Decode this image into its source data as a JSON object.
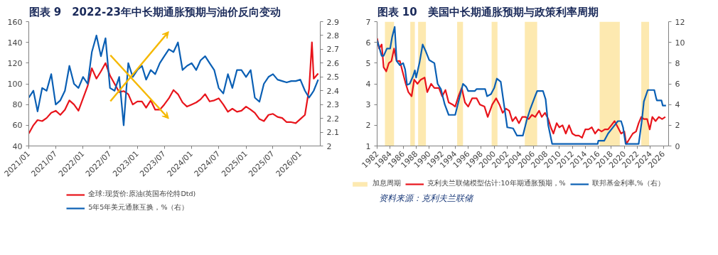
{
  "chart_data": [
    {
      "type": "line",
      "title": "图表 9　2022-23年中长期通胀预期与油价反向变动",
      "xlim": [
        "2021-01-01",
        "2026-05-15"
      ],
      "xticks": [
        {
          "value": "2021-01",
          "label": "2021/01"
        },
        {
          "value": "2021-07",
          "label": "2021/07"
        },
        {
          "value": "2022-01",
          "label": "2022/01"
        },
        {
          "value": "2022-07",
          "label": "2022/07"
        },
        {
          "value": "2023-01",
          "label": "2023/01"
        },
        {
          "value": "2023-07",
          "label": "2023/07"
        },
        {
          "value": "2024-01",
          "label": "2024/01"
        },
        {
          "value": "2024-07",
          "label": "2024/07"
        },
        {
          "value": "2025-01",
          "label": "2025/01"
        },
        {
          "value": "2025-07",
          "label": "2025/07"
        },
        {
          "value": "2026-01",
          "label": "2026/01"
        }
      ],
      "ylim": [
        40,
        160
      ],
      "yticks": [
        40,
        60,
        80,
        100,
        120,
        140,
        160
      ],
      "y2lim": [
        2,
        2.9
      ],
      "y2ticks": [
        2,
        2.1,
        2.2,
        2.3,
        2.4,
        2.5,
        2.6,
        2.7,
        2.8,
        2.9
      ],
      "grid": false,
      "legend": "bottom",
      "x": [
        "2021-01",
        "2021-02",
        "2021-03",
        "2021-04",
        "2021-05",
        "2021-06",
        "2021-07",
        "2021-08",
        "2021-09",
        "2021-10",
        "2021-11",
        "2021-12",
        "2022-01",
        "2022-02",
        "2022-03",
        "2022-04",
        "2022-05",
        "2022-06",
        "2022-07",
        "2022-08",
        "2022-09",
        "2022-10",
        "2022-11",
        "2022-12",
        "2023-01",
        "2023-02",
        "2023-03",
        "2023-04",
        "2023-05",
        "2023-06",
        "2023-07",
        "2023-08",
        "2023-09",
        "2023-10",
        "2023-11",
        "2023-12",
        "2024-01",
        "2024-02",
        "2024-03",
        "2024-04",
        "2024-05",
        "2024-06",
        "2024-07",
        "2024-08",
        "2024-09",
        "2024-10",
        "2024-11",
        "2024-12",
        "2025-01",
        "2025-02",
        "2025-03",
        "2025-04",
        "2025-05",
        "2025-06",
        "2025-07",
        "2025-08",
        "2025-09",
        "2025-10",
        "2025-11",
        "2025-12",
        "2026-01",
        "2026-02",
        "2026-03",
        "2026-03-20",
        "2026-04",
        "2026-05"
      ],
      "series": [
        {
          "name": "全球:现货价:原油(英国布伦特Dtd)",
          "color": "#e8141b",
          "values": [
            52,
            60,
            65,
            64,
            67,
            72,
            74,
            70,
            75,
            84,
            80,
            74,
            86,
            98,
            115,
            105,
            112,
            120,
            108,
            100,
            92,
            93,
            90,
            80,
            83,
            83,
            77,
            84,
            75,
            75,
            80,
            86,
            94,
            90,
            82,
            78,
            80,
            82,
            85,
            90,
            83,
            84,
            86,
            80,
            73,
            76,
            73,
            74,
            78,
            75,
            72,
            66,
            64,
            70,
            71,
            68,
            67,
            63,
            63,
            62,
            66,
            70,
            95,
            140,
            105,
            110
          ]
        },
        {
          "name": "5年5年美元通胀互换，%（右）",
          "color": "#0a5fb4",
          "axis": "y2",
          "values": [
            2.35,
            2.4,
            2.25,
            2.42,
            2.4,
            2.52,
            2.3,
            2.33,
            2.4,
            2.58,
            2.45,
            2.42,
            2.5,
            2.45,
            2.68,
            2.8,
            2.65,
            2.78,
            2.42,
            2.4,
            2.5,
            2.15,
            2.6,
            2.5,
            2.55,
            2.58,
            2.48,
            2.55,
            2.52,
            2.6,
            2.65,
            2.7,
            2.68,
            2.75,
            2.55,
            2.58,
            2.6,
            2.55,
            2.62,
            2.65,
            2.6,
            2.55,
            2.42,
            2.38,
            2.52,
            2.42,
            2.55,
            2.55,
            2.5,
            2.55,
            2.35,
            2.32,
            2.45,
            2.5,
            2.52,
            2.48,
            2.47,
            2.46,
            2.47,
            2.47,
            2.48,
            2.4,
            2.35,
            2.38,
            2.4,
            2.48
          ]
        }
      ]
    },
    {
      "type": "line",
      "title": "图表 10　美国中长期通胀预期与政策利率周期",
      "xlim": [
        1982,
        2026.8
      ],
      "xticks": [
        1982,
        1984,
        1986,
        1988,
        1990,
        1992,
        1994,
        1996,
        1998,
        2000,
        2002,
        2004,
        2006,
        2008,
        2010,
        2012,
        2014,
        2016,
        2018,
        2020,
        2022,
        2024,
        2026
      ],
      "ylim": [
        1,
        7
      ],
      "yticks": [
        1,
        2,
        3,
        4,
        5,
        6,
        7
      ],
      "y2lim": [
        0,
        12
      ],
      "y2ticks": [
        0,
        2,
        4,
        6,
        8,
        10,
        12
      ],
      "grid": false,
      "legend": "bottom",
      "bands": [
        {
          "axis": "x",
          "from": 1983.2,
          "to": 1984.6,
          "label": "加息周期",
          "color": "#fde9b0"
        },
        {
          "axis": "x",
          "from": 1987.1,
          "to": 1987.8,
          "color": "#fde9b0"
        },
        {
          "axis": "x",
          "from": 1988.3,
          "to": 1989.5,
          "color": "#fde9b0"
        },
        {
          "axis": "x",
          "from": 1994.3,
          "to": 1995.2,
          "color": "#fde9b0"
        },
        {
          "axis": "x",
          "from": 1999.6,
          "to": 2000.5,
          "color": "#fde9b0"
        },
        {
          "axis": "x",
          "from": 2004.7,
          "to": 2006.6,
          "color": "#fde9b0"
        },
        {
          "axis": "x",
          "from": 2016.2,
          "to": 2019.3,
          "color": "#fde9b0"
        },
        {
          "axis": "x",
          "from": 2022.6,
          "to": 2023.8,
          "color": "#fde9b0"
        }
      ],
      "series": [
        {
          "name": "克利夫兰联储模型估计:10年期通胀预期，%",
          "color": "#e8141b",
          "x": [
            1982.0,
            1982.3,
            1982.7,
            1983.0,
            1983.4,
            1983.8,
            1984.2,
            1984.6,
            1985.0,
            1985.5,
            1985.9,
            1986.4,
            1986.8,
            1987.3,
            1987.7,
            1988.2,
            1988.7,
            1989.3,
            1989.7,
            1990.3,
            1990.8,
            1991.5,
            1992.0,
            1992.5,
            1993.0,
            1993.6,
            1994.0,
            1994.5,
            1995.0,
            1995.5,
            1996.0,
            1996.6,
            1997.3,
            1997.8,
            1998.5,
            1999.0,
            1999.7,
            2000.3,
            2000.8,
            2001.3,
            2001.8,
            2002.3,
            2002.8,
            2003.3,
            2003.8,
            2004.3,
            2004.8,
            2005.3,
            2005.8,
            2006.3,
            2006.9,
            2007.3,
            2007.8,
            2008.3,
            2008.7,
            2009.1,
            2009.6,
            2010.0,
            2010.5,
            2011.0,
            2011.5,
            2012.0,
            2012.5,
            2013.0,
            2013.5,
            2014.0,
            2014.5,
            2015.0,
            2015.5,
            2016.0,
            2016.5,
            2017.0,
            2017.5,
            2018.0,
            2018.5,
            2019.0,
            2019.5,
            2020.0,
            2020.3,
            2020.7,
            2021.3,
            2021.8,
            2022.2,
            2022.6,
            2023.0,
            2023.5,
            2023.9,
            2024.3,
            2024.8,
            2025.3,
            2025.8,
            2026.3
          ],
          "values": [
            6.2,
            5.7,
            5.9,
            4.8,
            4.6,
            5.0,
            5.1,
            5.7,
            5.1,
            5.1,
            4.6,
            4.0,
            3.6,
            3.4,
            4.2,
            4.0,
            4.2,
            4.3,
            3.6,
            4.0,
            3.8,
            3.8,
            3.4,
            3.7,
            3.1,
            3.0,
            2.9,
            3.4,
            3.8,
            3.1,
            2.9,
            3.3,
            3.3,
            3.0,
            2.9,
            2.4,
            3.0,
            3.3,
            3.0,
            2.6,
            2.8,
            2.7,
            2.2,
            2.4,
            2.1,
            2.4,
            2.4,
            2.3,
            2.5,
            2.4,
            2.7,
            2.4,
            2.6,
            2.3,
            1.9,
            1.6,
            2.1,
            1.9,
            2.0,
            1.6,
            2.0,
            1.6,
            1.5,
            1.5,
            1.4,
            1.8,
            1.8,
            1.9,
            1.6,
            1.8,
            1.7,
            1.8,
            1.8,
            2.0,
            2.2,
            1.9,
            1.6,
            1.7,
            1.1,
            1.3,
            1.6,
            1.7,
            2.1,
            2.4,
            2.3,
            2.3,
            1.8,
            2.4,
            2.2,
            2.4,
            2.3,
            2.4
          ]
        },
        {
          "name": "联邦基金利率,%（右）",
          "color": "#0a5fb4",
          "axis": "y2",
          "x": [
            1982.0,
            1982.7,
            1983.0,
            1983.5,
            1984.0,
            1984.3,
            1984.7,
            1985.0,
            1985.5,
            1986.0,
            1986.3,
            1986.6,
            1987.0,
            1987.5,
            1987.8,
            1988.0,
            1988.5,
            1989.0,
            1989.5,
            1990.0,
            1990.8,
            1991.3,
            1991.8,
            1992.4,
            1993.0,
            1994.0,
            1994.8,
            1995.2,
            1995.7,
            1996.0,
            1997.0,
            1997.3,
            1998.6,
            1998.9,
            1999.5,
            2000.0,
            2000.4,
            2001.0,
            2001.5,
            2002.0,
            2002.9,
            2003.5,
            2004.4,
            2005.0,
            2005.5,
            2006.4,
            2006.6,
            2007.5,
            2007.9,
            2008.3,
            2008.9,
            2015.9,
            2016.0,
            2016.9,
            2017.5,
            2018.5,
            2019.0,
            2019.5,
            2019.8,
            2020.2,
            2022.2,
            2022.7,
            2023.0,
            2023.6,
            2024.6,
            2024.9,
            2025.0,
            2025.7,
            2025.9,
            2026.4
          ],
          "values": [
            10.2,
            8.7,
            8.7,
            9.4,
            9.4,
            10.5,
            11.5,
            8.2,
            7.8,
            8.0,
            7.4,
            5.9,
            6.0,
            6.7,
            7.3,
            6.6,
            8.0,
            9.8,
            9.1,
            8.3,
            8.0,
            6.0,
            5.5,
            4.0,
            3.0,
            3.0,
            5.0,
            6.0,
            5.7,
            5.3,
            5.3,
            5.5,
            5.5,
            4.8,
            5.0,
            5.6,
            6.5,
            6.2,
            4.0,
            1.8,
            1.7,
            1.0,
            1.0,
            2.5,
            3.5,
            5.0,
            5.3,
            5.3,
            4.5,
            2.0,
            0.2,
            0.2,
            0.5,
            0.5,
            1.2,
            2.0,
            2.4,
            2.4,
            1.8,
            0.2,
            0.2,
            2.5,
            4.3,
            5.4,
            5.4,
            4.6,
            4.4,
            4.4,
            3.9,
            3.9
          ]
        }
      ],
      "annotations": [
        "资料来源：克利夫兰联储"
      ]
    }
  ]
}
